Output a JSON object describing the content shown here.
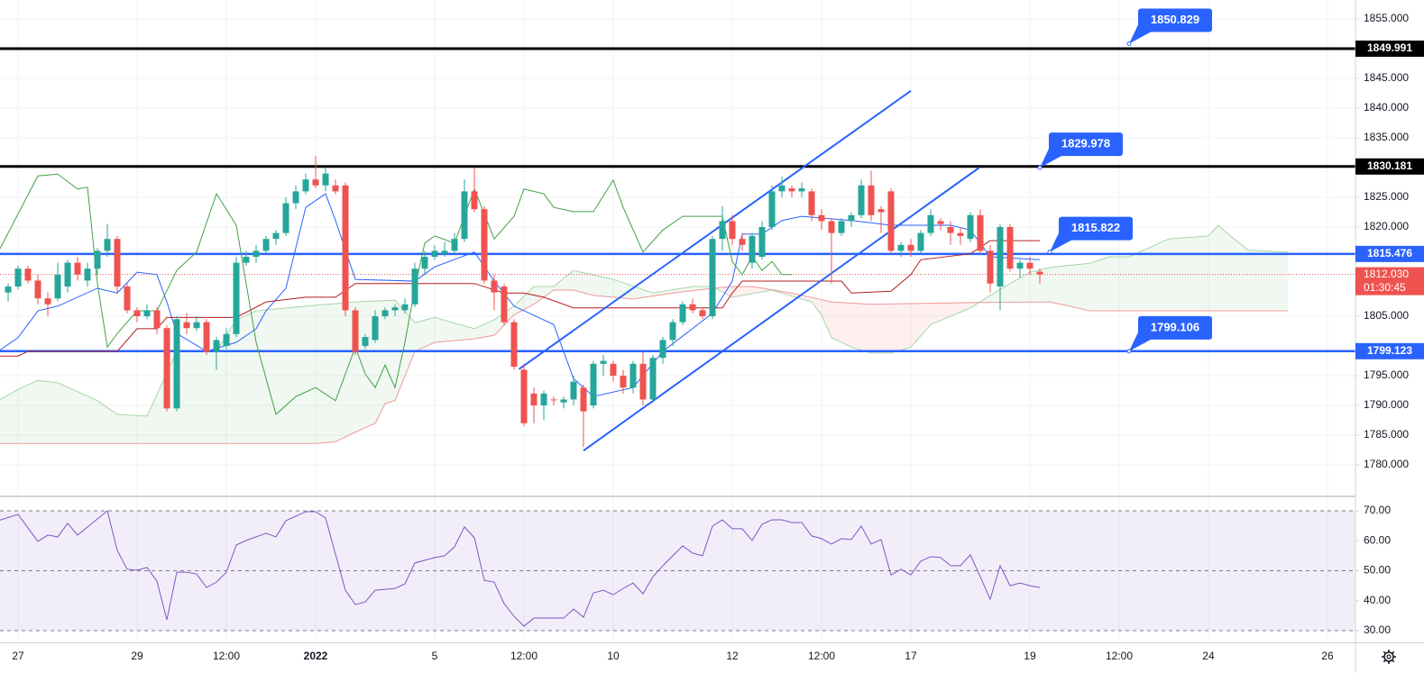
{
  "chart_data": {
    "type": "candlestick",
    "xlim": [
      -0.82,
      135.82
    ],
    "ylim": [
      1774.85,
      1858.18
    ],
    "grid": true,
    "xticks": [
      {
        "value": 1,
        "label": "27"
      },
      {
        "value": 13,
        "label": "29"
      },
      {
        "value": 22,
        "label": "12:00"
      },
      {
        "value": 31,
        "label": "2022"
      },
      {
        "value": 43,
        "label": "5"
      },
      {
        "value": 52,
        "label": "12:00"
      },
      {
        "value": 61,
        "label": "10"
      },
      {
        "value": 73,
        "label": "12"
      },
      {
        "value": 82,
        "label": "12:00"
      },
      {
        "value": 91,
        "label": "17"
      },
      {
        "value": 103,
        "label": "19"
      },
      {
        "value": 112,
        "label": "12:00"
      },
      {
        "value": 121,
        "label": "24"
      },
      {
        "value": 133,
        "label": "26"
      }
    ],
    "yticks": [
      {
        "value": 1780,
        "label": "1780.000"
      },
      {
        "value": 1785,
        "label": "1785.000"
      },
      {
        "value": 1790,
        "label": "1790.000"
      },
      {
        "value": 1795,
        "label": "1795.000"
      },
      {
        "value": 1805,
        "label": "1805.000"
      },
      {
        "value": 1820,
        "label": "1820.000"
      },
      {
        "value": 1825,
        "label": "1825.000"
      },
      {
        "value": 1835,
        "label": "1835.000"
      },
      {
        "value": 1840,
        "label": "1840.000"
      },
      {
        "value": 1845,
        "label": "1845.000"
      },
      {
        "value": 1855,
        "label": "1855.000"
      }
    ],
    "up_color": "#26a69a",
    "down_color": "#ef5350",
    "x": [
      0,
      1,
      2,
      3,
      4,
      5,
      6,
      7,
      8,
      9,
      10,
      11,
      12,
      13,
      14,
      15,
      16,
      17,
      18,
      19,
      20,
      21,
      22,
      23,
      24,
      25,
      26,
      27,
      28,
      29,
      30,
      31,
      32,
      33,
      34,
      35,
      36,
      37,
      38,
      39,
      40,
      41,
      42,
      43,
      44,
      45,
      46,
      47,
      48,
      49,
      50,
      51,
      52,
      53,
      54,
      55,
      56,
      57,
      58,
      59,
      60,
      61,
      62,
      63,
      64,
      65,
      66,
      67,
      68,
      69,
      70,
      71,
      72,
      73,
      74,
      75,
      76,
      77,
      78,
      79,
      80,
      81,
      82,
      83,
      84,
      85,
      86,
      87,
      88,
      89,
      90,
      91,
      92,
      93,
      94,
      95,
      96,
      97,
      98,
      99,
      100,
      101,
      102,
      103,
      104
    ],
    "open": [
      1809,
      1810,
      1813,
      1811,
      1808,
      1808,
      1810,
      1814,
      1811,
      1813,
      1816,
      1818,
      1810,
      1806,
      1805,
      1806,
      1803,
      1789.5,
      1804,
      1803,
      1804,
      1799,
      1800,
      1802,
      1814,
      1815,
      1816,
      1818,
      1819,
      1824,
      1826,
      1828,
      1827,
      1827,
      1827,
      1806,
      1800,
      1801,
      1805,
      1806,
      1806,
      1807,
      1813,
      1815,
      1815.5,
      1816,
      1818,
      1826,
      1823,
      1811,
      1810,
      1804,
      1796,
      1792,
      1790,
      1791,
      1790.5,
      1791,
      1793,
      1790,
      1797,
      1797,
      1795,
      1793,
      1797,
      1791,
      1798,
      1801,
      1804,
      1807,
      1806,
      1805,
      1818,
      1821,
      1818,
      1814,
      1815,
      1820,
      1826,
      1826.5,
      1826,
      1826,
      1822,
      1821,
      1819,
      1821,
      1822,
      1827,
      1823,
      1826,
      1816,
      1817,
      1816,
      1819,
      1821,
      1820,
      1819,
      1818,
      1822,
      1816,
      1810,
      1820,
      1813,
      1814,
      1812.5
    ],
    "high": [
      1810.5,
      1813.5,
      1813.5,
      1812,
      1809,
      1814,
      1814.5,
      1815,
      1814,
      1816.5,
      1820.5,
      1818.5,
      1810.5,
      1806.5,
      1807,
      1806.5,
      1803.5,
      1805,
      1805.5,
      1805,
      1804.5,
      1801.5,
      1803,
      1815,
      1816,
      1817,
      1818.5,
      1819.5,
      1825,
      1827,
      1829,
      1832,
      1830,
      1828,
      1827.5,
      1806.5,
      1802,
      1806,
      1806.5,
      1807,
      1808,
      1814,
      1816,
      1817,
      1817.5,
      1819,
      1828,
      1830,
      1823.5,
      1812,
      1810.5,
      1804.5,
      1797,
      1793,
      1792.5,
      1791.5,
      1791.5,
      1795,
      1793.5,
      1797.5,
      1798.5,
      1797.5,
      1796,
      1797.5,
      1799,
      1798.5,
      1801.5,
      1804.5,
      1807.5,
      1808,
      1806.5,
      1818.5,
      1823.5,
      1822,
      1819,
      1819,
      1821,
      1827,
      1828.5,
      1827,
      1827.5,
      1826.5,
      1823,
      1821.5,
      1821.5,
      1822.5,
      1828,
      1829.5,
      1823.5,
      1826.5,
      1817.5,
      1818,
      1819.5,
      1823,
      1821.5,
      1821,
      1820,
      1822.5,
      1823,
      1817,
      1820.5,
      1820.5,
      1814.5,
      1815,
      1813
    ],
    "low": [
      1807.5,
      1809.5,
      1810.5,
      1807,
      1805,
      1807.5,
      1809,
      1811,
      1810,
      1812,
      1815,
      1809,
      1805.5,
      1804,
      1804.5,
      1802,
      1789,
      1789,
      1802,
      1802.5,
      1798.5,
      1796,
      1799.5,
      1801.5,
      1813.5,
      1814,
      1815.5,
      1817,
      1818.5,
      1823,
      1825.5,
      1826.5,
      1826,
      1825.5,
      1805,
      1798.5,
      1799.5,
      1800.5,
      1804.5,
      1805,
      1805.5,
      1806.5,
      1812,
      1814.5,
      1815,
      1815.5,
      1817.5,
      1822.5,
      1810.5,
      1806,
      1803.5,
      1796,
      1786.5,
      1787,
      1787.5,
      1790,
      1789.5,
      1790,
      1783,
      1789.5,
      1795,
      1794,
      1792,
      1792,
      1790,
      1790.5,
      1797,
      1800,
      1803.5,
      1805.5,
      1804.5,
      1804.5,
      1816,
      1817,
      1816,
      1813,
      1814.5,
      1819.5,
      1825,
      1825,
      1825,
      1821,
      1819.5,
      1810.5,
      1818.5,
      1820,
      1821.5,
      1821,
      1819,
      1815.5,
      1815,
      1815,
      1815.5,
      1818.5,
      1819.5,
      1817,
      1817,
      1817.5,
      1815.5,
      1809,
      1806,
      1812.5,
      1811.5,
      1812,
      1810.5
    ],
    "close": [
      1810,
      1813,
      1811,
      1808,
      1807,
      1812,
      1814,
      1812,
      1813,
      1816,
      1818,
      1810,
      1806,
      1805,
      1806,
      1803,
      1789.5,
      1804.5,
      1803,
      1804,
      1799,
      1801,
      1802,
      1814,
      1815,
      1816,
      1818,
      1819,
      1824,
      1826,
      1828,
      1827,
      1829,
      1826,
      1806,
      1799,
      1801.5,
      1805,
      1806,
      1806.5,
      1807,
      1813,
      1815,
      1816,
      1816,
      1818,
      1826,
      1823,
      1811,
      1809,
      1804,
      1796.5,
      1787,
      1790,
      1792,
      1791,
      1791,
      1794,
      1789,
      1797,
      1797.5,
      1795,
      1793,
      1797,
      1791,
      1798,
      1801,
      1804,
      1807,
      1806,
      1805,
      1818,
      1821,
      1818,
      1817,
      1818.5,
      1820,
      1826,
      1827,
      1826,
      1826.5,
      1822,
      1821,
      1819,
      1821,
      1822,
      1827,
      1822,
      1822.5,
      1816,
      1817,
      1816,
      1819,
      1822,
      1820.5,
      1819,
      1818.5,
      1822,
      1816,
      1810.5,
      1820,
      1813,
      1814,
      1813,
      1812.03
    ],
    "lines": [
      {
        "color": "#2962ff",
        "x": [
          -1,
          1,
          3,
          5,
          9,
          11,
          13,
          15,
          16,
          17,
          20,
          23,
          25,
          26,
          28,
          30,
          32,
          33,
          35,
          41,
          43,
          47,
          49,
          51,
          55,
          57,
          59,
          63,
          66,
          71,
          73,
          74,
          76,
          78,
          80,
          85,
          89,
          95,
          97,
          99,
          104
        ],
        "values": [
          1799.1,
          1801.4,
          1805.9,
          1806.7,
          1809.7,
          1808.9,
          1812.4,
          1812.0,
          1807.4,
          1802.1,
          1799.1,
          1800.6,
          1802.9,
          1805.9,
          1809.7,
          1823.3,
          1825.6,
          1821.1,
          1811.2,
          1810.9,
          1813.3,
          1815.8,
          1810.9,
          1806.7,
          1803.6,
          1794.5,
          1791.5,
          1793.0,
          1799.1,
          1805.5,
          1810.9,
          1818.8,
          1818.8,
          1821.1,
          1821.8,
          1821.1,
          1820.3,
          1820.3,
          1819.5,
          1815.0,
          1814.5
        ]
      },
      {
        "color": "#b71c1c",
        "x": [
          -1,
          1,
          2,
          11,
          13,
          15,
          16,
          23,
          26,
          30,
          33,
          35,
          47,
          50,
          52,
          54,
          57,
          72,
          73,
          74,
          84,
          85,
          89,
          91,
          92,
          97,
          99,
          104
        ],
        "values": [
          1798.3,
          1798.3,
          1799.1,
          1799.1,
          1802.9,
          1802.9,
          1804.8,
          1804.8,
          1807.4,
          1808.2,
          1808.2,
          1810.5,
          1810.5,
          1808.9,
          1808.9,
          1808.2,
          1806.4,
          1806.4,
          1808.9,
          1810.9,
          1810.9,
          1808.9,
          1809.2,
          1812.0,
          1814.5,
          1815.5,
          1817.7,
          1817.7
        ]
      },
      {
        "color": "#43a047",
        "x": [
          -1,
          3,
          5,
          7,
          8,
          9,
          10,
          11,
          13,
          15,
          17,
          19,
          21,
          23,
          25,
          27,
          29,
          31,
          33,
          35,
          36,
          37,
          38,
          39,
          40,
          41,
          42,
          43,
          45,
          47,
          49,
          51,
          52,
          54,
          55,
          57,
          59,
          61,
          62,
          64,
          66,
          68,
          72,
          73,
          74,
          75,
          76,
          77,
          78,
          79
        ],
        "values": [
          1815.8,
          1828.6,
          1828.9,
          1826.4,
          1826.7,
          1810.5,
          1799.8,
          1802.1,
          1805.9,
          1805.9,
          1812.7,
          1815.8,
          1825.6,
          1820.3,
          1800.6,
          1788.5,
          1791.5,
          1793.0,
          1790.8,
          1799.8,
          1795.3,
          1793.0,
          1796.8,
          1793.0,
          1800.6,
          1809.7,
          1817.3,
          1818.5,
          1817.3,
          1826.4,
          1818.0,
          1821.8,
          1826.4,
          1825.6,
          1823.3,
          1822.6,
          1822.6,
          1827.9,
          1823.3,
          1815.8,
          1819.5,
          1821.8,
          1821.8,
          1814.2,
          1812.0,
          1815.0,
          1812.7,
          1814.2,
          1812.0,
          1812.0
        ]
      }
    ],
    "cloud": {
      "up_color": "#43a047",
      "down_color": "#f44336",
      "span_a": {
        "color": "#a5d6a7",
        "x": [
          -1,
          1,
          3,
          5,
          9,
          11,
          14,
          17,
          21,
          23,
          25,
          30,
          35,
          39,
          41,
          43,
          47,
          49,
          51,
          53,
          55,
          57,
          61,
          65,
          69,
          71,
          73,
          77,
          81,
          82,
          83,
          85,
          87,
          89,
          91,
          93,
          97,
          99,
          101,
          103,
          105,
          109,
          111,
          113,
          115,
          117,
          121,
          122,
          123,
          125,
          129
        ],
        "values": [
          1790.8,
          1792.7,
          1794.2,
          1793.8,
          1790.8,
          1788.5,
          1788.2,
          1799.1,
          1799.1,
          1804.4,
          1805.9,
          1806.7,
          1807.4,
          1807.7,
          1803.9,
          1804.8,
          1802.9,
          1804.4,
          1806.7,
          1810.0,
          1810.0,
          1812.7,
          1811.2,
          1808.9,
          1810.0,
          1810.0,
          1808.2,
          1809.4,
          1807.4,
          1805.2,
          1801.4,
          1799.8,
          1798.8,
          1798.8,
          1799.8,
          1803.6,
          1806.4,
          1808.5,
          1810.5,
          1812.4,
          1813.2,
          1813.9,
          1815.0,
          1815.0,
          1816.5,
          1818.0,
          1818.5,
          1820.3,
          1818.8,
          1816.1,
          1815.8
        ]
      },
      "span_b": {
        "color": "#ef9a9a",
        "x": [
          -1,
          31,
          33,
          35,
          37,
          38,
          39,
          41,
          43,
          47,
          49,
          51,
          53,
          55,
          57,
          59,
          63,
          67,
          71,
          73,
          75,
          79,
          83,
          87,
          97,
          105,
          107,
          109,
          129
        ],
        "values": [
          1783.6,
          1783.6,
          1783.9,
          1785.5,
          1787.0,
          1790.3,
          1790.8,
          1799.1,
          1800.6,
          1801.2,
          1801.8,
          1805.2,
          1807.0,
          1809.4,
          1809.4,
          1808.5,
          1807.9,
          1808.9,
          1809.7,
          1810.0,
          1810.0,
          1808.9,
          1807.4,
          1807.0,
          1807.3,
          1807.4,
          1806.7,
          1805.9,
          1805.9
        ]
      }
    },
    "levels": [
      {
        "value": 1849.991,
        "color": "#000000"
      },
      {
        "value": 1830.181,
        "color": "#000000"
      },
      {
        "value": 1815.476,
        "color": "#2962ff"
      },
      {
        "value": 1799.123,
        "color": "#2962ff"
      }
    ],
    "callout_color": "#2962ff",
    "callouts": [
      {
        "x": 113,
        "value": 1850.829
      },
      {
        "x": 104,
        "value": 1829.978
      },
      {
        "x": 105,
        "value": 1815.822
      },
      {
        "x": 113,
        "value": 1799.106
      }
    ],
    "channel": {
      "color": "#2962ff",
      "lines": [
        {
          "x": [
            51.5,
            91
          ],
          "y": [
            1796.1,
            1842.9
          ]
        },
        {
          "x": [
            58,
            97.9
          ],
          "y": [
            1782.4,
            1830.0
          ]
        }
      ]
    },
    "last_price": {
      "value": 1812.03,
      "label": "1812.030",
      "countdown": "01:30:45",
      "color": "#ef5350"
    },
    "rsi": {
      "type": "line",
      "color": "#7e57c2",
      "ylim": [
        26.1,
        74.5
      ],
      "yticks": [
        {
          "value": 30,
          "label": "30.00"
        },
        {
          "value": 40,
          "label": "40.00"
        },
        {
          "value": 50,
          "label": "50.00"
        },
        {
          "value": 60,
          "label": "60.00"
        },
        {
          "value": 70,
          "label": "70.00"
        }
      ],
      "bands": [
        70,
        50,
        30
      ],
      "x": [
        -1,
        1,
        3,
        4,
        5,
        6,
        7,
        9,
        10,
        11,
        12,
        13,
        14,
        15,
        16,
        17,
        18,
        19,
        20,
        21,
        22,
        23,
        24,
        26,
        27,
        28,
        30,
        31,
        32,
        34,
        35,
        36,
        37,
        39,
        40,
        41,
        43,
        44,
        45,
        46,
        47,
        48,
        49,
        50,
        51,
        52,
        53,
        54,
        56,
        57,
        58,
        59,
        60,
        61,
        62,
        63,
        64,
        65,
        66,
        68,
        69,
        70,
        71,
        72,
        73,
        74,
        75,
        76,
        77,
        78,
        79,
        80,
        81,
        82,
        83,
        84,
        85,
        86,
        87,
        88,
        89,
        90,
        91,
        92,
        93,
        94,
        95,
        96,
        97,
        98,
        99,
        100,
        101,
        102,
        103,
        104
      ],
      "values": [
        66.7,
        68.8,
        59.8,
        61.9,
        61.3,
        65.8,
        61.9,
        67.3,
        70,
        56.8,
        50.5,
        50.2,
        51.1,
        46.5,
        33.6,
        49.5,
        49.5,
        48.9,
        44.4,
        46.2,
        49.5,
        58.6,
        60.1,
        62.5,
        61.3,
        66.7,
        69.7,
        69.7,
        67.6,
        43.5,
        38.7,
        39.6,
        43.5,
        44.1,
        45.6,
        52.6,
        54.4,
        55,
        58,
        64.6,
        61,
        46.8,
        46.2,
        39,
        34.8,
        31.5,
        34.2,
        34.2,
        34.2,
        37.2,
        34.5,
        42.6,
        43.5,
        42,
        44.1,
        45.9,
        42.3,
        48,
        51.7,
        58.3,
        55.9,
        55,
        64.9,
        67,
        64,
        64,
        60.1,
        65.5,
        67,
        67,
        66.1,
        66.1,
        61.6,
        60.7,
        58.9,
        60.7,
        60.4,
        64.9,
        58.9,
        60.4,
        48.6,
        50.5,
        48.6,
        53.2,
        54.7,
        54.4,
        51.7,
        51.7,
        55.3,
        48,
        40.5,
        51.7,
        45,
        45.9,
        45,
        44.4
      ]
    }
  }
}
